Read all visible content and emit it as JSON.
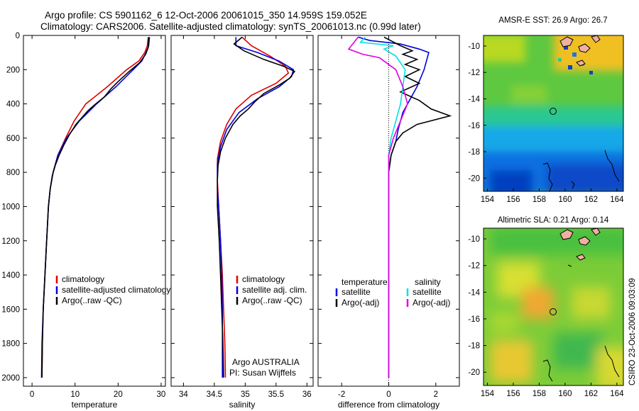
{
  "header": {
    "line1": "Argo profile: CS 5901162_6 12-Oct-2006 20061015_350 14.959S 159.052E",
    "line2": "Climatology: CARS2006. Satellite-adjusted climatology: synTS_20061013.nc (0.99d later)"
  },
  "side_label": "CSIRO 23-Oct-2006 09:03:09",
  "credit": {
    "line1": "Argo AUSTRALIA",
    "line2": "PI: Susan Wijffels"
  },
  "colors": {
    "climatology": "#e00000",
    "satellite": "#0000e0",
    "argo": "#000000",
    "cyan": "#00e0e0",
    "magenta": "#e000e0"
  },
  "chart_data": [
    {
      "type": "line",
      "id": "temperature",
      "xlabel": "temperature",
      "xlim": [
        -2,
        31
      ],
      "ylim": [
        2050,
        0
      ],
      "xticks": [
        0,
        10,
        20,
        30
      ],
      "yticks": [
        0,
        200,
        400,
        600,
        800,
        1000,
        1200,
        1400,
        1600,
        1800,
        2000
      ],
      "legend": [
        "climatology",
        "satellite-adjusted climatology",
        "Argo(..raw -QC)"
      ],
      "series": [
        {
          "name": "climatology",
          "color": "#e00000",
          "points": [
            [
              27.0,
              10
            ],
            [
              26.8,
              60
            ],
            [
              26.2,
              100
            ],
            [
              24.8,
              150
            ],
            [
              22.0,
              200
            ],
            [
              17.5,
              300
            ],
            [
              12.5,
              400
            ],
            [
              9.8,
              500
            ],
            [
              7.8,
              600
            ],
            [
              6.0,
              700
            ],
            [
              4.9,
              800
            ],
            [
              4.2,
              900
            ],
            [
              3.8,
              1000
            ],
            [
              3.4,
              1200
            ],
            [
              3.0,
              1400
            ],
            [
              2.6,
              1600
            ],
            [
              2.4,
              1800
            ],
            [
              2.3,
              2000
            ]
          ]
        },
        {
          "name": "satellite-adjusted climatology",
          "color": "#0000e0",
          "points": [
            [
              27.3,
              10
            ],
            [
              27.1,
              60
            ],
            [
              26.5,
              100
            ],
            [
              25.5,
              150
            ],
            [
              23.5,
              200
            ],
            [
              19.5,
              300
            ],
            [
              15.0,
              400
            ],
            [
              11.0,
              500
            ],
            [
              8.0,
              600
            ],
            [
              6.0,
              700
            ],
            [
              4.9,
              800
            ],
            [
              4.2,
              900
            ],
            [
              3.8,
              1000
            ],
            [
              3.4,
              1200
            ],
            [
              3.0,
              1400
            ],
            [
              2.6,
              1600
            ],
            [
              2.3,
              1800
            ],
            [
              2.2,
              2000
            ]
          ]
        },
        {
          "name": "Argo(..raw -QC)",
          "color": "#000000",
          "points": [
            [
              27.1,
              10
            ],
            [
              27.0,
              70
            ],
            [
              26.4,
              110
            ],
            [
              25.0,
              160
            ],
            [
              22.6,
              210
            ],
            [
              20.0,
              270
            ],
            [
              18.4,
              310
            ],
            [
              16.8,
              360
            ],
            [
              14.8,
              400
            ],
            [
              13.0,
              440
            ],
            [
              11.6,
              480
            ],
            [
              10.2,
              520
            ],
            [
              8.7,
              580
            ],
            [
              7.4,
              640
            ],
            [
              6.3,
              700
            ],
            [
              5.4,
              760
            ],
            [
              4.7,
              820
            ],
            [
              4.2,
              900
            ],
            [
              3.8,
              1000
            ],
            [
              3.4,
              1200
            ],
            [
              3.0,
              1400
            ],
            [
              2.6,
              1600
            ],
            [
              2.4,
              1800
            ],
            [
              2.3,
              2000
            ]
          ]
        }
      ]
    },
    {
      "type": "line",
      "id": "salinity",
      "xlabel": "salinity",
      "xlim": [
        33.8,
        36.1
      ],
      "ylim": [
        2050,
        0
      ],
      "xticks": [
        34,
        34.5,
        35,
        35.5,
        36
      ],
      "xticklabels": [
        "34",
        "34.5",
        "35",
        "35.5",
        "36"
      ],
      "legend": [
        "climatology",
        "satellite adj. clim.",
        "Argo(..raw -QC)"
      ],
      "series": [
        {
          "name": "climatology",
          "color": "#e00000",
          "points": [
            [
              34.95,
              10
            ],
            [
              35.1,
              60
            ],
            [
              35.4,
              120
            ],
            [
              35.65,
              180
            ],
            [
              35.7,
              220
            ],
            [
              35.5,
              280
            ],
            [
              35.1,
              350
            ],
            [
              34.85,
              430
            ],
            [
              34.7,
              520
            ],
            [
              34.6,
              620
            ],
            [
              34.55,
              720
            ],
            [
              34.55,
              850
            ],
            [
              34.57,
              1000
            ],
            [
              34.6,
              1200
            ],
            [
              34.63,
              1400
            ],
            [
              34.65,
              1600
            ],
            [
              34.67,
              1800
            ],
            [
              34.68,
              2000
            ]
          ]
        },
        {
          "name": "satellite adj. clim.",
          "color": "#0000e0",
          "points": [
            [
              34.85,
              10
            ],
            [
              34.85,
              60
            ],
            [
              35.2,
              100
            ],
            [
              35.55,
              150
            ],
            [
              35.78,
              200
            ],
            [
              35.75,
              240
            ],
            [
              35.55,
              300
            ],
            [
              35.2,
              370
            ],
            [
              34.9,
              450
            ],
            [
              34.7,
              550
            ],
            [
              34.6,
              650
            ],
            [
              34.55,
              750
            ],
            [
              34.55,
              900
            ],
            [
              34.57,
              1000
            ],
            [
              34.6,
              1200
            ],
            [
              34.62,
              1400
            ],
            [
              34.63,
              1600
            ],
            [
              34.63,
              1800
            ],
            [
              34.63,
              2000
            ]
          ]
        },
        {
          "name": "Argo(..raw -QC)",
          "color": "#000000",
          "points": [
            [
              34.95,
              10
            ],
            [
              34.82,
              50
            ],
            [
              34.98,
              90
            ],
            [
              35.3,
              140
            ],
            [
              35.62,
              180
            ],
            [
              35.8,
              210
            ],
            [
              35.72,
              250
            ],
            [
              35.55,
              290
            ],
            [
              35.3,
              340
            ],
            [
              35.15,
              390
            ],
            [
              35.05,
              430
            ],
            [
              34.92,
              470
            ],
            [
              34.8,
              520
            ],
            [
              34.68,
              600
            ],
            [
              34.6,
              680
            ],
            [
              34.56,
              760
            ],
            [
              34.55,
              850
            ],
            [
              34.55,
              1000
            ],
            [
              34.58,
              1200
            ],
            [
              34.6,
              1400
            ],
            [
              34.62,
              1600
            ],
            [
              34.64,
              1800
            ],
            [
              34.65,
              2000
            ]
          ]
        }
      ]
    },
    {
      "type": "line",
      "id": "difference",
      "xlabel": "difference from climatology",
      "xlim": [
        -3,
        3
      ],
      "ylim": [
        2050,
        0
      ],
      "xticks": [
        -2,
        0,
        2
      ],
      "legend_title_left": "temperature",
      "legend_title_right": "salinity",
      "legend": [
        "satellite",
        "Argo(-adj)",
        "satellite",
        "Argo(-adj)"
      ],
      "series": [
        {
          "name": "temperature satellite",
          "color": "#0000e0",
          "points": [
            [
              -1.3,
              10
            ],
            [
              -0.8,
              30
            ],
            [
              0.5,
              50
            ],
            [
              1.3,
              80
            ],
            [
              1.7,
              100
            ],
            [
              1.5,
              200
            ],
            [
              1.2,
              300
            ],
            [
              0.6,
              450
            ],
            [
              0.4,
              550
            ],
            [
              0.3,
              620
            ],
            [
              0.1,
              700
            ],
            [
              0.0,
              800
            ],
            [
              0.0,
              1000
            ],
            [
              0.0,
              1500
            ],
            [
              0.0,
              2000
            ]
          ]
        },
        {
          "name": "temperature Argo(-adj)",
          "color": "#000000",
          "points": [
            [
              -0.2,
              10
            ],
            [
              0.5,
              60
            ],
            [
              1.0,
              90
            ],
            [
              0.6,
              110
            ],
            [
              1.2,
              140
            ],
            [
              0.7,
              170
            ],
            [
              1.3,
              200
            ],
            [
              0.7,
              240
            ],
            [
              1.3,
              280
            ],
            [
              0.5,
              330
            ],
            [
              1.3,
              380
            ],
            [
              1.8,
              430
            ],
            [
              2.6,
              470
            ],
            [
              1.2,
              520
            ],
            [
              0.6,
              570
            ],
            [
              0.3,
              620
            ],
            [
              0.1,
              700
            ],
            [
              0.0,
              800
            ],
            [
              0.0,
              1000
            ],
            [
              0.0,
              1500
            ],
            [
              0.0,
              2000
            ]
          ]
        },
        {
          "name": "salinity satellite",
          "color": "#00e0e0",
          "points": [
            [
              -1.0,
              10
            ],
            [
              -1.2,
              40
            ],
            [
              0.2,
              60
            ],
            [
              -0.2,
              80
            ],
            [
              0.3,
              120
            ],
            [
              0.7,
              200
            ],
            [
              0.6,
              300
            ],
            [
              0.5,
              400
            ],
            [
              0.3,
              500
            ],
            [
              0.1,
              600
            ],
            [
              0.0,
              700
            ],
            [
              0.0,
              800
            ],
            [
              0.0,
              1000
            ],
            [
              0.0,
              1500
            ],
            [
              0.0,
              2000
            ]
          ]
        },
        {
          "name": "salinity Argo(-adj)",
          "color": "#e000e0",
          "points": [
            [
              -1.3,
              10
            ],
            [
              -1.7,
              80
            ],
            [
              -1.1,
              110
            ],
            [
              -0.4,
              130
            ],
            [
              -0.2,
              150
            ],
            [
              0.3,
              200
            ],
            [
              0.6,
              300
            ],
            [
              0.8,
              400
            ],
            [
              0.5,
              500
            ],
            [
              0.2,
              600
            ],
            [
              0.0,
              700
            ],
            [
              0.0,
              800
            ],
            [
              0.0,
              1000
            ],
            [
              0.0,
              1500
            ],
            [
              0.0,
              2000
            ]
          ]
        }
      ]
    },
    {
      "type": "heatmap",
      "id": "sst-map",
      "title": "AMSR-E SST: 26.9  Argo: 26.7",
      "xlim": [
        153.7,
        164.5
      ],
      "ylim": [
        -21,
        -9.2
      ],
      "xticks": [
        154,
        156,
        158,
        160,
        162,
        164
      ],
      "yticks": [
        -10,
        -12,
        -14,
        -16,
        -18,
        -20
      ],
      "marker": [
        159.0,
        -15.0
      ]
    },
    {
      "type": "heatmap",
      "id": "sla-map",
      "title": "Altimetric SLA: 0.21  Argo: 0.14",
      "xlim": [
        153.7,
        164.5
      ],
      "ylim": [
        -21,
        -9.2
      ],
      "xticks": [
        154,
        156,
        158,
        160,
        162,
        164
      ],
      "yticks": [
        -10,
        -12,
        -14,
        -16,
        -18,
        -20
      ],
      "marker": [
        159.0,
        -15.0
      ]
    }
  ]
}
